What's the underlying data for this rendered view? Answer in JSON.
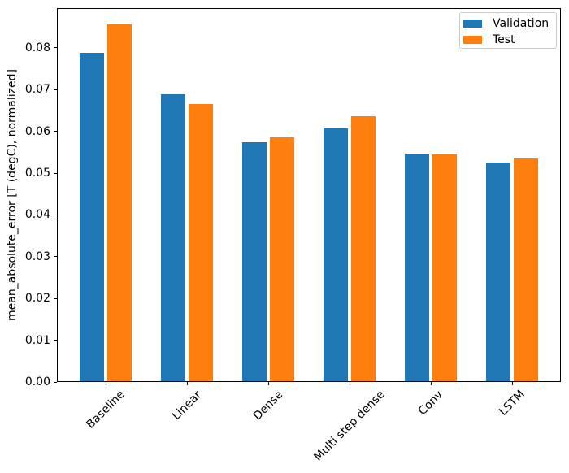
{
  "chart_data": {
    "type": "bar",
    "title": "",
    "xlabel": "",
    "ylabel": "mean_absolute_error [T (degC), normalized]",
    "categories": [
      "Baseline",
      "Linear",
      "Dense",
      "Multi step dense",
      "Conv",
      "LSTM"
    ],
    "series": [
      {
        "name": "Validation",
        "color": "#1f77b4",
        "values": [
          0.0786,
          0.0687,
          0.0572,
          0.0606,
          0.0545,
          0.0524
        ]
      },
      {
        "name": "Test",
        "color": "#ff7f0e",
        "values": [
          0.0854,
          0.0664,
          0.0583,
          0.0634,
          0.0543,
          0.0533
        ]
      }
    ],
    "ylim": [
      0,
      0.0895
    ],
    "yticks": [
      0,
      0.01,
      0.02,
      0.03,
      0.04,
      0.05,
      0.06,
      0.07,
      0.08
    ],
    "ytick_labels": [
      "0.00",
      "0.01",
      "0.02",
      "0.03",
      "0.04",
      "0.05",
      "0.06",
      "0.07",
      "0.08"
    ],
    "xtick_rotation_deg": 45,
    "grid": false,
    "legend": {
      "position": "upper right",
      "entries": [
        "Validation",
        "Test"
      ]
    }
  }
}
